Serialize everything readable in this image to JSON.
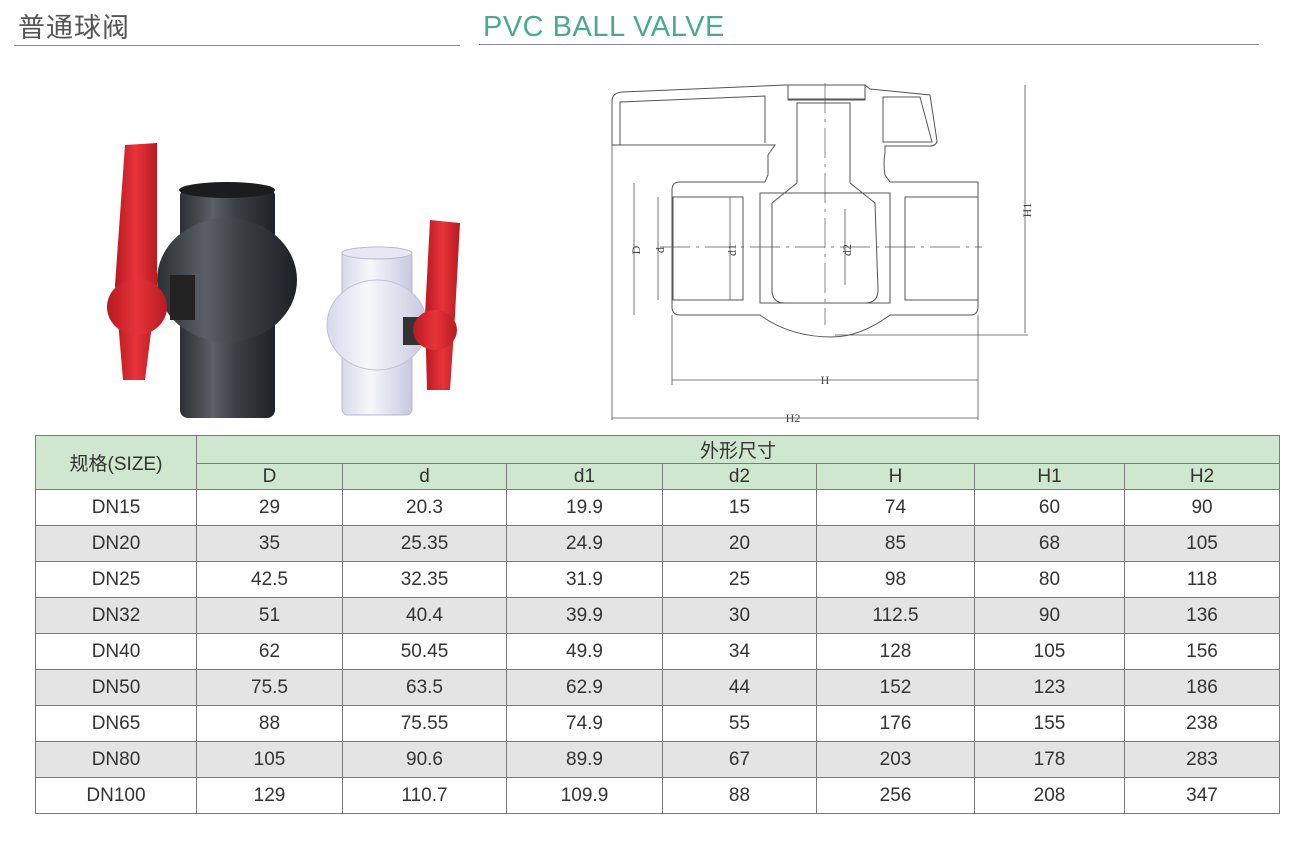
{
  "header": {
    "title_cn": "普通球阀",
    "title_en": "PVC BALL VALVE",
    "accent_color": "#4aaa8e"
  },
  "drawing": {
    "labels": {
      "D": "D",
      "d": "d",
      "d1": "d1",
      "d2": "d2",
      "H": "H",
      "H1": "H1",
      "H2": "H2"
    }
  },
  "table": {
    "size_header": "规格(SIZE)",
    "group_header": "外形尺寸",
    "columns": [
      "D",
      "d",
      "d1",
      "d2",
      "H",
      "H1",
      "H2"
    ],
    "header_color": "#cfe6cf",
    "rows": [
      [
        "DN15",
        "29",
        "20.3",
        "19.9",
        "15",
        "74",
        "60",
        "90"
      ],
      [
        "DN20",
        "35",
        "25.35",
        "24.9",
        "20",
        "85",
        "68",
        "105"
      ],
      [
        "DN25",
        "42.5",
        "32.35",
        "31.9",
        "25",
        "98",
        "80",
        "118"
      ],
      [
        "DN32",
        "51",
        "40.4",
        "39.9",
        "30",
        "112.5",
        "90",
        "136"
      ],
      [
        "DN40",
        "62",
        "50.45",
        "49.9",
        "34",
        "128",
        "105",
        "156"
      ],
      [
        "DN50",
        "75.5",
        "63.5",
        "62.9",
        "44",
        "152",
        "123",
        "186"
      ],
      [
        "DN65",
        "88",
        "75.55",
        "74.9",
        "55",
        "176",
        "155",
        "238"
      ],
      [
        "DN80",
        "105",
        "90.6",
        "89.9",
        "67",
        "203",
        "178",
        "283"
      ],
      [
        "DN100",
        "129",
        "110.7",
        "109.9",
        "88",
        "256",
        "208",
        "347"
      ]
    ]
  }
}
